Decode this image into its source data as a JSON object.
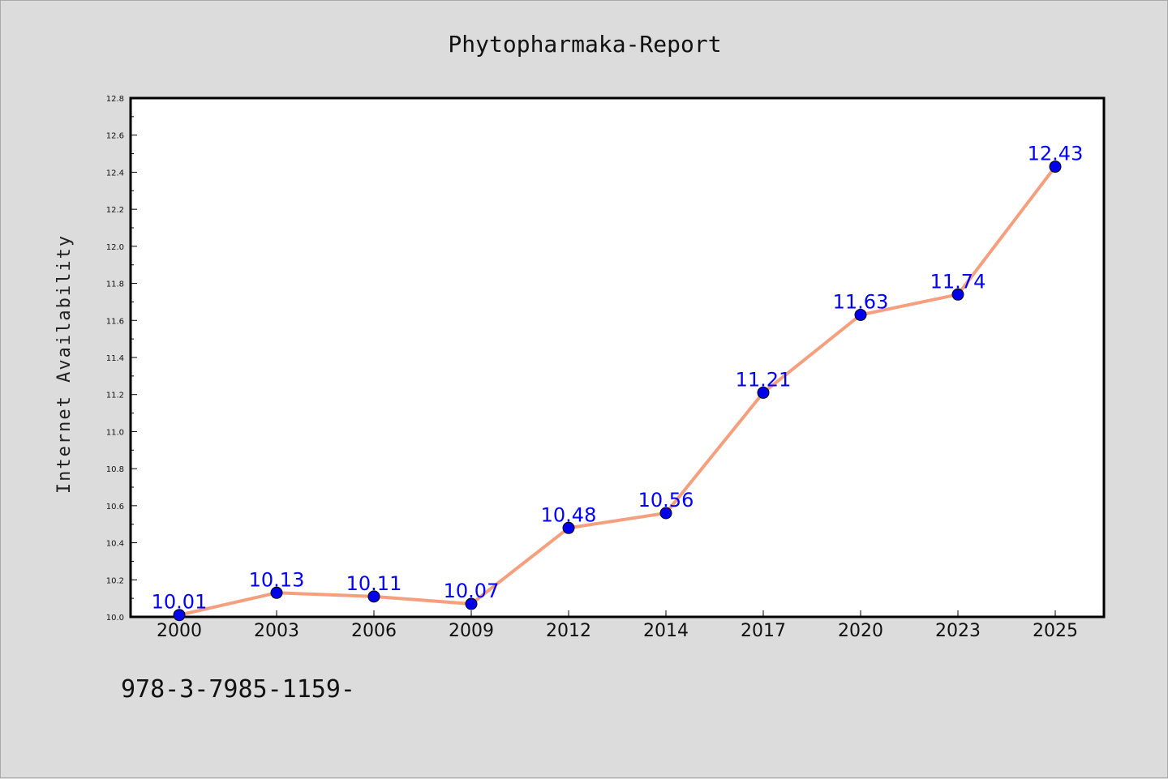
{
  "chart_data": {
    "type": "line",
    "title": "Phytopharmaka-Report",
    "xlabel": "",
    "ylabel": "Internet Availability",
    "categories": [
      "2000",
      "2003",
      "2006",
      "2009",
      "2012",
      "2014",
      "2017",
      "2020",
      "2023",
      "2025"
    ],
    "series": [
      {
        "values": [
          10.01,
          10.13,
          10.11,
          10.07,
          10.48,
          10.56,
          11.21,
          11.63,
          11.74,
          12.43
        ]
      }
    ],
    "data_labels": [
      "10.01",
      "10.13",
      "10.11",
      "10.07",
      "10.48",
      "10.56",
      "11.21",
      "11.63",
      "11.74",
      "12.43"
    ],
    "ylim": [
      10.0,
      12.8
    ],
    "yticks": [
      "10.0",
      "10.2",
      "10.4",
      "10.6",
      "10.8",
      "11.0",
      "11.2",
      "11.4",
      "11.6",
      "11.8",
      "12.0",
      "12.2",
      "12.4",
      "12.6",
      "12.8"
    ],
    "grid": false,
    "legend": "none",
    "colors": {
      "line": "#f4a07e",
      "marker": "#0000ee",
      "label": "#0000ff",
      "background": "#dcdcdc",
      "plot_background": "#ffffff"
    }
  },
  "footer": {
    "code": "978-3-7985-1159-"
  }
}
